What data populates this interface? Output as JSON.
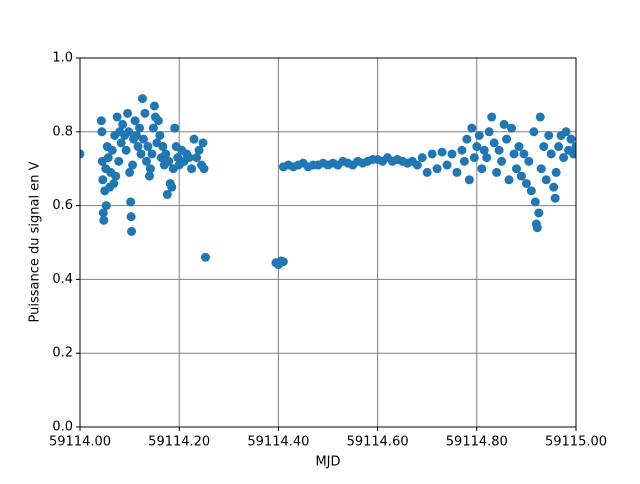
{
  "chart_data": {
    "type": "scatter",
    "xlabel": "MJD",
    "ylabel": "Puissance du signal en V",
    "color": "#1f77b4",
    "grid": true,
    "xlim": [
      59114.0,
      59115.0
    ],
    "xticks": [
      {
        "value": 59114.0,
        "label": "59114.00"
      },
      {
        "value": 59114.2,
        "label": "59114.20"
      },
      {
        "value": 59114.4,
        "label": "59114.40"
      },
      {
        "value": 59114.6,
        "label": "59114.60"
      },
      {
        "value": 59114.8,
        "label": "59114.80"
      },
      {
        "value": 59115.0,
        "label": "59115.00"
      }
    ],
    "ylim": [
      0,
      1
    ],
    "yticks": [
      {
        "value": 0,
        "label": "0.0"
      },
      0.2,
      0.4,
      0.6,
      0.8,
      {
        "value": 1,
        "label": "1.0"
      }
    ],
    "x": [
      59114.0,
      59114.043,
      59114.044,
      59114.045,
      59114.046,
      59114.047,
      59114.048,
      59114.05,
      59114.052,
      59114.053,
      59114.055,
      59114.057,
      59114.06,
      59114.062,
      59114.065,
      59114.068,
      59114.07,
      59114.072,
      59114.075,
      59114.078,
      59114.08,
      59114.083,
      59114.086,
      59114.09,
      59114.093,
      59114.096,
      59114.098,
      59114.1,
      59114.102,
      59114.103,
      59114.104,
      59114.106,
      59114.108,
      59114.111,
      59114.114,
      59114.117,
      59114.12,
      59114.123,
      59114.126,
      59114.128,
      59114.131,
      59114.134,
      59114.137,
      59114.14,
      59114.142,
      59114.145,
      59114.148,
      59114.15,
      59114.152,
      59114.155,
      59114.158,
      59114.161,
      59114.164,
      59114.167,
      59114.17,
      59114.173,
      59114.176,
      59114.179,
      59114.182,
      59114.185,
      59114.188,
      59114.191,
      59114.194,
      59114.197,
      59114.2,
      59114.205,
      59114.21,
      59114.215,
      59114.22,
      59114.225,
      59114.23,
      59114.235,
      59114.24,
      59114.245,
      59114.248,
      59114.25,
      59114.253,
      59114.395,
      59114.4,
      59114.405,
      59114.41,
      59114.41,
      59114.42,
      59114.43,
      59114.44,
      59114.45,
      59114.46,
      59114.47,
      59114.48,
      59114.49,
      59114.5,
      59114.51,
      59114.52,
      59114.53,
      59114.54,
      59114.55,
      59114.56,
      59114.57,
      59114.58,
      59114.59,
      59114.6,
      59114.61,
      59114.62,
      59114.63,
      59114.64,
      59114.65,
      59114.66,
      59114.67,
      59114.68,
      59114.69,
      59114.7,
      59114.71,
      59114.72,
      59114.73,
      59114.74,
      59114.75,
      59114.76,
      59114.77,
      59114.775,
      59114.78,
      59114.785,
      59114.79,
      59114.795,
      59114.8,
      59114.805,
      59114.81,
      59114.815,
      59114.82,
      59114.825,
      59114.83,
      59114.835,
      59114.84,
      59114.845,
      59114.85,
      59114.855,
      59114.86,
      59114.865,
      59114.87,
      59114.875,
      59114.88,
      59114.885,
      59114.89,
      59114.895,
      59114.9,
      59114.905,
      59114.91,
      59114.915,
      59114.918,
      59114.92,
      59114.922,
      59114.925,
      59114.928,
      59114.93,
      59114.935,
      59114.94,
      59114.945,
      59114.95,
      59114.955,
      59114.958,
      59114.96,
      59114.965,
      59114.97,
      59114.975,
      59114.98,
      59114.985,
      59114.99,
      59114.995,
      59115.0
    ],
    "values": [
      0.74,
      0.83,
      0.8,
      0.72,
      0.67,
      0.58,
      0.56,
      0.64,
      0.7,
      0.6,
      0.76,
      0.73,
      0.65,
      0.69,
      0.75,
      0.66,
      0.79,
      0.68,
      0.84,
      0.72,
      0.8,
      0.77,
      0.82,
      0.79,
      0.75,
      0.85,
      0.8,
      0.69,
      0.61,
      0.57,
      0.53,
      0.71,
      0.78,
      0.83,
      0.79,
      0.76,
      0.81,
      0.74,
      0.89,
      0.78,
      0.85,
      0.72,
      0.76,
      0.68,
      0.7,
      0.74,
      0.81,
      0.87,
      0.84,
      0.77,
      0.83,
      0.79,
      0.73,
      0.76,
      0.71,
      0.74,
      0.63,
      0.72,
      0.66,
      0.65,
      0.7,
      0.81,
      0.76,
      0.73,
      0.71,
      0.75,
      0.72,
      0.74,
      0.73,
      0.7,
      0.78,
      0.73,
      0.75,
      0.71,
      0.77,
      0.7,
      0.46,
      0.445,
      0.44,
      0.45,
      0.448,
      0.705,
      0.71,
      0.705,
      0.71,
      0.715,
      0.705,
      0.71,
      0.71,
      0.715,
      0.71,
      0.715,
      0.71,
      0.72,
      0.715,
      0.71,
      0.72,
      0.715,
      0.72,
      0.725,
      0.725,
      0.72,
      0.73,
      0.72,
      0.725,
      0.72,
      0.715,
      0.72,
      0.71,
      0.73,
      0.69,
      0.74,
      0.7,
      0.745,
      0.71,
      0.74,
      0.69,
      0.75,
      0.72,
      0.78,
      0.67,
      0.81,
      0.73,
      0.76,
      0.79,
      0.7,
      0.75,
      0.73,
      0.8,
      0.84,
      0.77,
      0.69,
      0.75,
      0.72,
      0.82,
      0.78,
      0.67,
      0.81,
      0.74,
      0.7,
      0.76,
      0.68,
      0.74,
      0.66,
      0.72,
      0.64,
      0.8,
      0.61,
      0.55,
      0.54,
      0.58,
      0.84,
      0.7,
      0.76,
      0.67,
      0.79,
      0.74,
      0.65,
      0.62,
      0.69,
      0.76,
      0.79,
      0.73,
      0.8,
      0.75,
      0.78,
      0.74,
      0.76
    ]
  }
}
